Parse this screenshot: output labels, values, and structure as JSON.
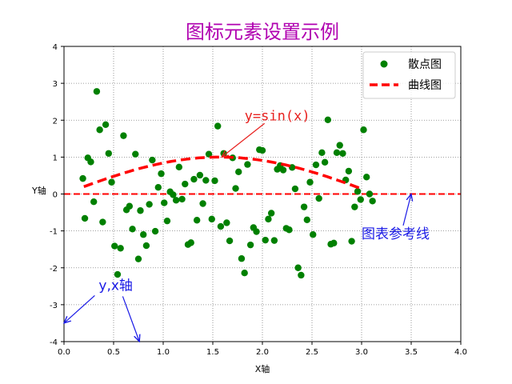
{
  "chart_data": {
    "type": "scatter",
    "title": "图标元素设置示例",
    "xlabel": "X轴",
    "ylabel": "Y轴",
    "xlim": [
      0.0,
      4.0
    ],
    "ylim": [
      -4,
      4
    ],
    "xticks": [
      "0.0",
      "0.5",
      "1.0",
      "1.5",
      "2.0",
      "2.5",
      "3.0",
      "3.5",
      "4.0"
    ],
    "yticks": [
      "-4",
      "-3",
      "-2",
      "-1",
      "0",
      "1",
      "2",
      "3",
      "4"
    ],
    "grid": true,
    "legend_position": "top-right",
    "colors": {
      "scatter": "#008000",
      "curve": "#ff0000",
      "reference_line": "#ff0000",
      "title": "#b000b0",
      "annotation_red": "#e8201e",
      "annotation_blue": "#1a1ae6"
    },
    "series": [
      {
        "name": "散点图",
        "type": "scatter",
        "points": [
          [
            0.19,
            0.42
          ],
          [
            0.21,
            -0.66
          ],
          [
            0.24,
            0.98
          ],
          [
            0.27,
            0.87
          ],
          [
            0.3,
            -0.21
          ],
          [
            0.33,
            2.78
          ],
          [
            0.36,
            1.74
          ],
          [
            0.39,
            -0.76
          ],
          [
            0.42,
            1.88
          ],
          [
            0.45,
            1.1
          ],
          [
            0.48,
            0.32
          ],
          [
            0.51,
            -1.41
          ],
          [
            0.54,
            -2.18
          ],
          [
            0.57,
            -1.47
          ],
          [
            0.6,
            1.58
          ],
          [
            0.63,
            -0.43
          ],
          [
            0.66,
            -0.33
          ],
          [
            0.69,
            -0.95
          ],
          [
            0.72,
            1.08
          ],
          [
            0.75,
            -1.76
          ],
          [
            0.77,
            -0.45
          ],
          [
            0.8,
            -1.1
          ],
          [
            0.83,
            -1.4
          ],
          [
            0.86,
            -0.28
          ],
          [
            0.89,
            0.92
          ],
          [
            0.92,
            -1.01
          ],
          [
            0.95,
            0.18
          ],
          [
            0.98,
            0.55
          ],
          [
            1.01,
            -0.24
          ],
          [
            1.04,
            -0.73
          ],
          [
            1.07,
            0.06
          ],
          [
            1.1,
            -0.02
          ],
          [
            1.13,
            -0.17
          ],
          [
            1.16,
            0.73
          ],
          [
            1.19,
            -0.14
          ],
          [
            1.22,
            0.27
          ],
          [
            1.25,
            -1.37
          ],
          [
            1.28,
            -1.32
          ],
          [
            1.31,
            0.4
          ],
          [
            1.34,
            -0.71
          ],
          [
            1.37,
            0.51
          ],
          [
            1.4,
            -0.26
          ],
          [
            1.43,
            0.37
          ],
          [
            1.46,
            1.08
          ],
          [
            1.49,
            -0.68
          ],
          [
            1.52,
            0.36
          ],
          [
            1.55,
            1.84
          ],
          [
            1.58,
            -0.88
          ],
          [
            1.61,
            1.1
          ],
          [
            1.64,
            -0.78
          ],
          [
            1.67,
            -1.27
          ],
          [
            1.7,
            0.98
          ],
          [
            1.73,
            0.15
          ],
          [
            1.76,
            0.6
          ],
          [
            1.79,
            -1.75
          ],
          [
            1.82,
            -2.14
          ],
          [
            1.85,
            0.8
          ],
          [
            1.88,
            -1.38
          ],
          [
            1.91,
            -0.91
          ],
          [
            1.94,
            -1.02
          ],
          [
            1.97,
            1.2
          ],
          [
            2.0,
            1.18
          ],
          [
            2.03,
            -1.25
          ],
          [
            2.06,
            -0.68
          ],
          [
            2.09,
            -0.52
          ],
          [
            2.12,
            -1.26
          ],
          [
            2.15,
            0.67
          ],
          [
            2.18,
            0.77
          ],
          [
            2.21,
            0.65
          ],
          [
            2.24,
            -0.93
          ],
          [
            2.27,
            -0.97
          ],
          [
            2.3,
            0.72
          ],
          [
            2.33,
            0.14
          ],
          [
            2.36,
            -2.0
          ],
          [
            2.39,
            -2.2
          ],
          [
            2.42,
            -0.35
          ],
          [
            2.45,
            -0.7
          ],
          [
            2.48,
            0.32
          ],
          [
            2.51,
            -1.1
          ],
          [
            2.54,
            0.79
          ],
          [
            2.57,
            -0.12
          ],
          [
            2.6,
            1.12
          ],
          [
            2.63,
            0.86
          ],
          [
            2.66,
            2.01
          ],
          [
            2.69,
            -1.36
          ],
          [
            2.72,
            -1.33
          ],
          [
            2.75,
            1.12
          ],
          [
            2.78,
            1.32
          ],
          [
            2.81,
            1.1
          ],
          [
            2.84,
            0.38
          ],
          [
            2.87,
            0.62
          ],
          [
            2.9,
            -1.28
          ],
          [
            2.93,
            -0.35
          ],
          [
            2.96,
            0.07
          ],
          [
            2.99,
            -0.15
          ],
          [
            3.02,
            1.74
          ],
          [
            3.05,
            0.46
          ],
          [
            3.08,
            0.0
          ],
          [
            3.11,
            -0.19
          ]
        ]
      },
      {
        "name": "曲线图",
        "type": "line",
        "style": "dashed",
        "function": "y=sin(x)",
        "x_range": [
          0.2,
          3.0
        ]
      }
    ],
    "reference_line": {
      "label": "图表参考线",
      "y": 0,
      "style": "dashed"
    },
    "annotations": [
      {
        "text": "y=sin(x)",
        "color": "red",
        "text_pos": [
          1.82,
          2.0
        ],
        "arrow_to": [
          1.59,
          1.0
        ]
      },
      {
        "text": "图表参考线",
        "color": "blue",
        "text_pos": [
          3.0,
          -1.2
        ],
        "arrow_to": [
          3.5,
          0.0
        ]
      },
      {
        "text": "y,x轴",
        "color": "blue",
        "text_pos": [
          0.35,
          -2.6
        ],
        "arrow_to_list": [
          [
            0.0,
            -3.5
          ],
          [
            0.76,
            -4.0
          ]
        ]
      }
    ]
  }
}
